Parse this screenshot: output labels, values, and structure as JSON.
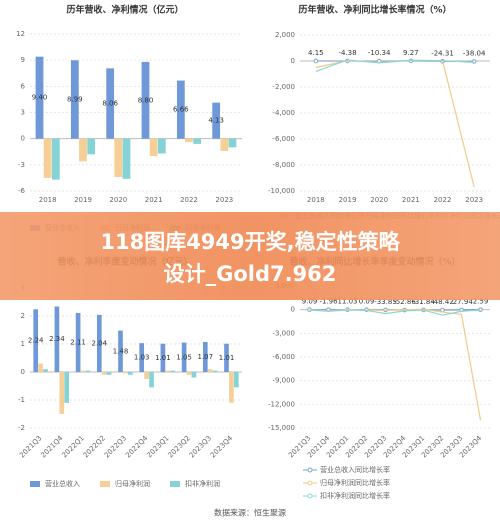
{
  "chart_data": [
    {
      "type": "bar",
      "title": "历年营收、净利情况（亿元）",
      "categories": [
        "2018",
        "2019",
        "2020",
        "2021",
        "2022",
        "2023"
      ],
      "ylim": [
        -6,
        12
      ],
      "yticks": [
        -6,
        -3,
        0,
        3,
        6,
        9,
        12
      ],
      "grid": true,
      "series": [
        {
          "name": "营业总收入",
          "color": "#6f98d8",
          "values": [
            9.4,
            8.99,
            8.06,
            8.8,
            6.66,
            4.13
          ],
          "value_labels": [
            "9.40",
            "8.99",
            "8.06",
            "8.80",
            "6.66",
            "4.13"
          ]
        },
        {
          "name": "归母净利润",
          "color": "#f5cf95",
          "values": [
            -4.5,
            -2.6,
            -4.4,
            -2.0,
            -0.4,
            -1.4
          ]
        },
        {
          "name": "扣非净利润",
          "color": "#85d3d5",
          "values": [
            -4.7,
            -1.8,
            -4.6,
            -1.7,
            -0.6,
            -1.0
          ]
        }
      ]
    },
    {
      "type": "line",
      "title": "历年营收、净利同比增长率情况（%）",
      "categories": [
        "2018",
        "2019",
        "2020",
        "2021",
        "2022",
        "2023"
      ],
      "ylim": [
        -10000,
        2000
      ],
      "yticks": [
        {
          "value": 2000,
          "label": "2,000"
        },
        0,
        {
          "value": -2000,
          "label": "-2,000"
        },
        {
          "value": -4000,
          "label": "-4,000"
        },
        {
          "value": -6000,
          "label": "-6,000"
        },
        {
          "value": -8000,
          "label": "-8,000"
        },
        {
          "value": -10000,
          "label": "-10,000"
        }
      ],
      "grid": true,
      "series": [
        {
          "name": "营业总收入同比增长率",
          "color": "#7fa3c9",
          "values": [
            4.15,
            -4.38,
            -10.34,
            9.27,
            -24.31,
            -38.04
          ]
        },
        {
          "name": "归母净利润同比增长率",
          "color": "#f3c98a",
          "values": [
            -500,
            30,
            -100,
            50,
            30,
            -9700
          ]
        },
        {
          "name": "扣非净利润同比增长率",
          "color": "#8ad6d6",
          "values": [
            -800,
            80,
            -150,
            60,
            20,
            -100
          ]
        }
      ]
    },
    {
      "type": "bar",
      "title": "营收、净利季度变动情况（亿元）",
      "categories": [
        "2021Q3",
        "2021Q4",
        "2022Q1",
        "2022Q2",
        "2022Q3",
        "2022Q4",
        "2023Q1",
        "2023Q2",
        "2023Q3",
        "2023Q4"
      ],
      "ylim": [
        -2,
        3
      ],
      "yticks": [
        -2,
        -1,
        0,
        1,
        2,
        3
      ],
      "grid": true,
      "series": [
        {
          "name": "营业总收入",
          "color": "#6f98d8",
          "values": [
            2.24,
            2.34,
            2.11,
            2.04,
            1.48,
            1.03,
            1.01,
            1.05,
            1.07,
            1.01
          ]
        },
        {
          "name": "归母净利润",
          "color": "#f5cf95",
          "values": [
            0.3,
            -1.5,
            0.05,
            -0.1,
            -0.05,
            -0.25,
            0.05,
            -0.1,
            0.1,
            -1.1
          ]
        },
        {
          "name": "扣非净利润",
          "color": "#85d3d5",
          "values": [
            0.1,
            -1.1,
            0.05,
            -0.1,
            -0.1,
            -0.55,
            0.05,
            -0.2,
            0.05,
            -0.55
          ]
        }
      ]
    },
    {
      "type": "line",
      "title": "营收、净利同比增长率季度变动情况（%）",
      "categories": [
        "2021Q3",
        "2021Q4",
        "2022Q1",
        "2022Q2",
        "2022Q3",
        "2022Q4",
        "2023Q1",
        "2023Q2",
        "2023Q3",
        "2023Q4"
      ],
      "ylim": [
        -15000,
        3000
      ],
      "yticks": [
        {
          "value": 3000,
          "label": "3,000"
        },
        0,
        {
          "value": -3000,
          "label": "-3,000"
        },
        {
          "value": -6000,
          "label": "-6,000"
        },
        {
          "value": -9000,
          "label": "-9,000"
        },
        {
          "value": -12000,
          "label": "-12,000"
        },
        {
          "value": -15000,
          "label": "-15,000"
        }
      ],
      "grid": true,
      "series": [
        {
          "name": "营业总收入同比增长率",
          "color": "#7fa3c9",
          "values": [
            9.09,
            -1.96,
            11.03,
            0.09,
            -33.85,
            -52.86,
            -31.84,
            -48.42,
            -27.94,
            2.59
          ]
        },
        {
          "name": "归母净利润同比增长率",
          "color": "#f3c98a",
          "values": [
            0,
            -150,
            20,
            -50,
            -100,
            -30,
            50,
            -300,
            -600,
            -14000
          ]
        },
        {
          "name": "扣非净利润同比增长率",
          "color": "#8ad6d6",
          "values": [
            -50,
            -200,
            -50,
            -100,
            -500,
            -150,
            -50,
            -700,
            -200,
            -50
          ]
        }
      ]
    }
  ],
  "banner": [
    "118图库4949开奖,稳定性策略",
    "设计_Gold7.962"
  ],
  "source": "数据来源：恒生聚源"
}
